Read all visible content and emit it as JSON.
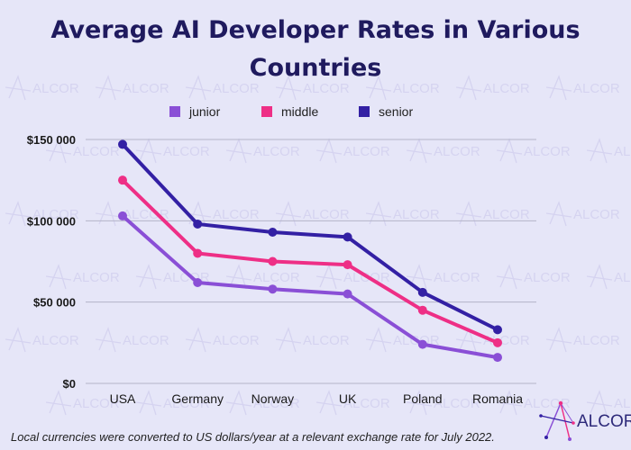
{
  "colors": {
    "background": "#e6e6f8",
    "title": "#1f1a5e",
    "junior": "#8a4fd6",
    "middle": "#ee2f86",
    "senior": "#3320a4"
  },
  "chart_data": {
    "type": "line",
    "title_lines": [
      "Average AI Developer Rates in Various",
      "Countries"
    ],
    "categories": [
      "USA",
      "Germany",
      "Norway",
      "UK",
      "Poland",
      "Romania"
    ],
    "series": [
      {
        "name": "junior",
        "color": "#8a4fd6",
        "values": [
          103000,
          62000,
          58000,
          55000,
          24000,
          16000
        ]
      },
      {
        "name": "middle",
        "color": "#ee2f86",
        "values": [
          125000,
          80000,
          75000,
          73000,
          45000,
          25000
        ]
      },
      {
        "name": "senior",
        "color": "#3320a4",
        "values": [
          147000,
          98000,
          93000,
          90000,
          56000,
          33000
        ]
      }
    ],
    "ylim": [
      0,
      150000
    ],
    "y_ticks": [
      0,
      50000,
      100000,
      150000
    ],
    "y_tick_labels": [
      "$0",
      "$50 000",
      "$100 000",
      "$150 000"
    ],
    "grid": true,
    "legend_position": "top",
    "footnote": "Local currencies were converted to US dollars/year at a relevant exchange rate for July 2022."
  },
  "brand": {
    "logo_text": "ALCOR",
    "watermark_text": "ALCOR"
  }
}
